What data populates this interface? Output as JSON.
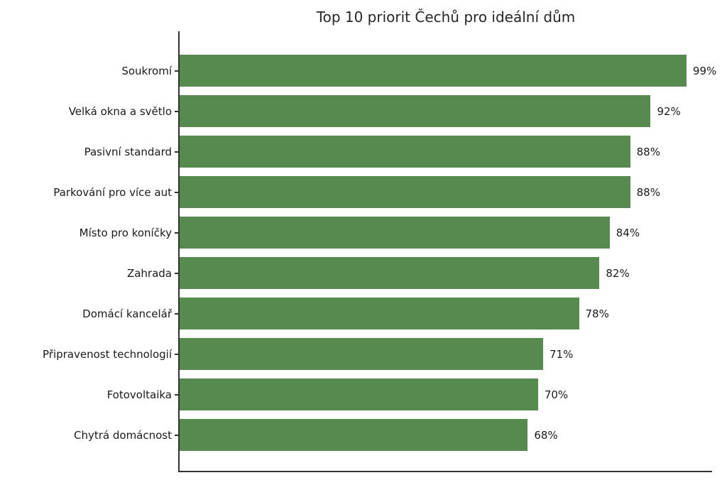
{
  "chart_data": {
    "type": "bar",
    "orientation": "horizontal",
    "title": "Top 10 priorit Čechů pro ideální dům",
    "categories": [
      "Soukromí",
      "Velká okna a světlo",
      "Pasivní standard",
      "Parkování pro více aut",
      "Místo pro koníčky",
      "Zahrada",
      "Domácí kancelář",
      "Připravenost technologií",
      "Fotovoltaika",
      "Chytrá domácnost"
    ],
    "values": [
      99,
      92,
      88,
      88,
      84,
      82,
      78,
      71,
      70,
      68
    ],
    "value_labels": [
      "99%",
      "92%",
      "88%",
      "88%",
      "84%",
      "82%",
      "78%",
      "71%",
      "70%",
      "68%"
    ],
    "xlabel": "",
    "ylabel": "",
    "xlim": [
      0,
      104
    ],
    "grid": false,
    "legend": "none",
    "bar_color": "#578a4e",
    "axis_color": "#333333",
    "text_color": "#1a1a1a",
    "background_color": "#ffffff"
  }
}
